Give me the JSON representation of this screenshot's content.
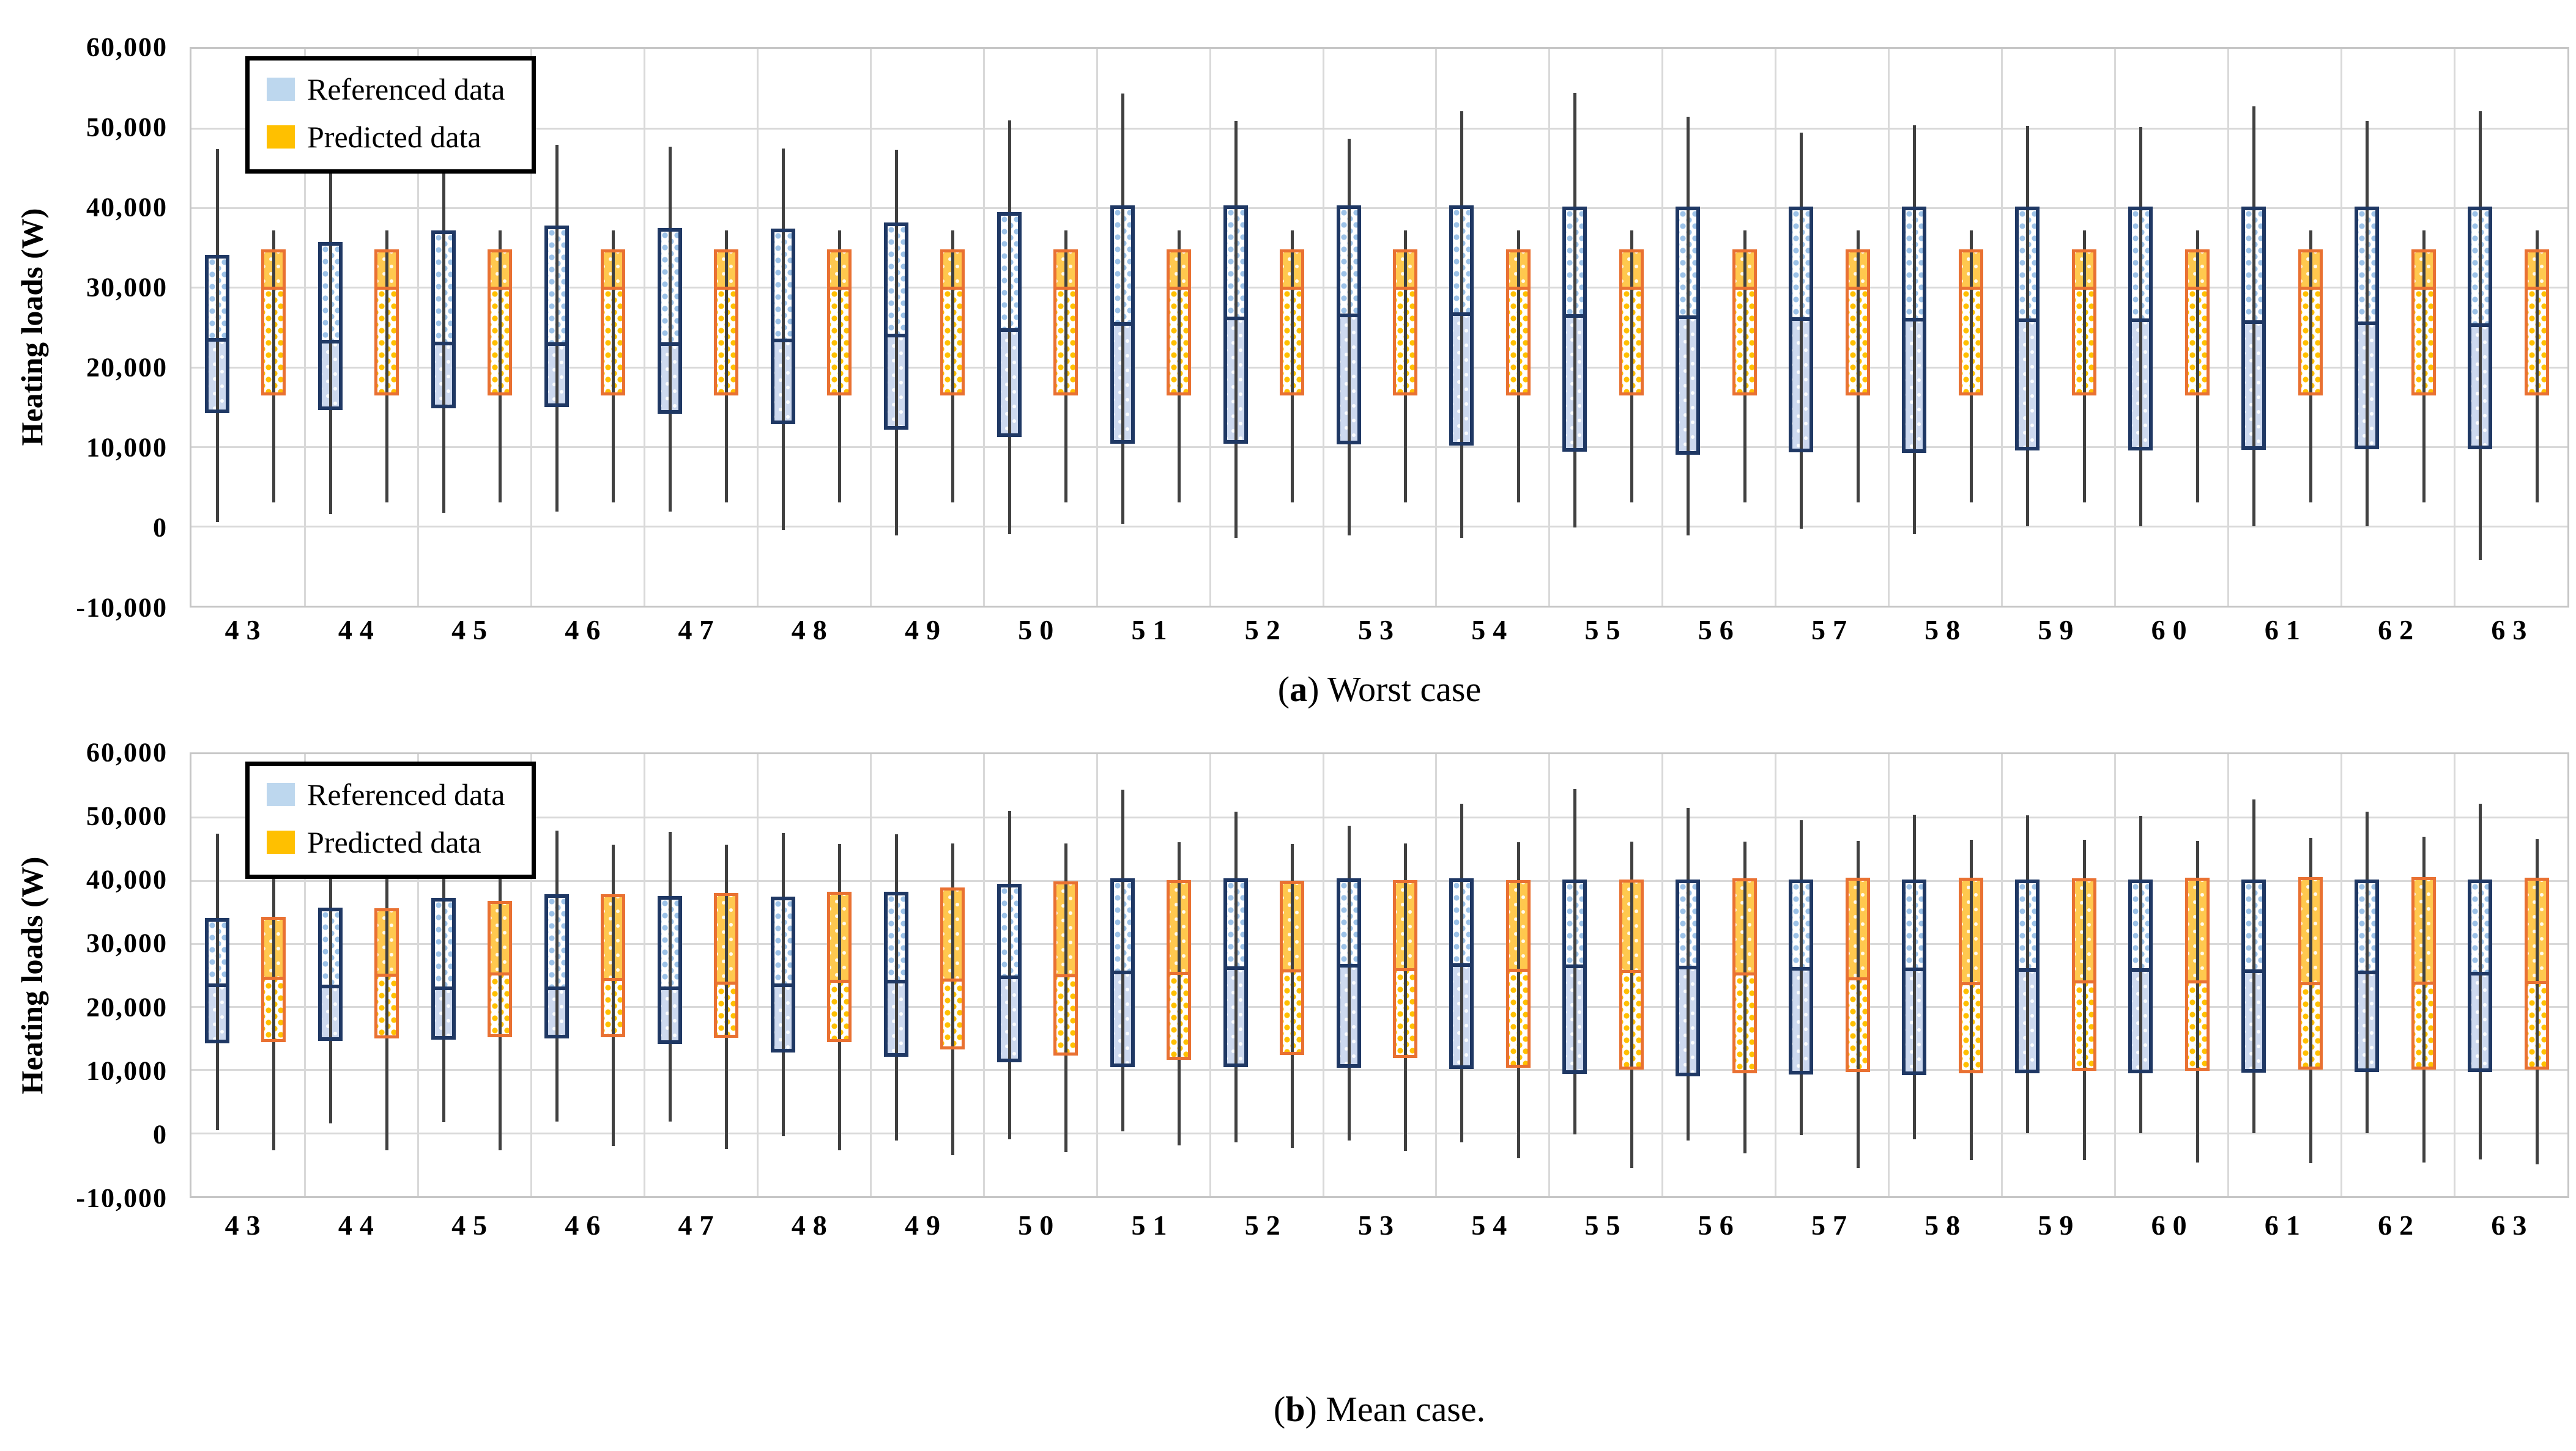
{
  "figure": {
    "background": "#ffffff",
    "grid_color": "#d9d9d9",
    "whisker_color": "#404040"
  },
  "chart_data": [
    {
      "type": "boxplot",
      "title": "(a) Worst case",
      "caption": {
        "pre": "(",
        "bold": "a",
        "post": ") Worst case"
      },
      "ylabel": "Heating loads (W)",
      "xlabel": "",
      "ylim": [
        -10000,
        60000
      ],
      "ytick_step": 10000,
      "grid": true,
      "legend_position": "top-left",
      "yticks": [
        {
          "value": 60000,
          "label": "60,000"
        },
        {
          "value": 50000,
          "label": "50,000"
        },
        {
          "value": 40000,
          "label": "40,000"
        },
        {
          "value": 30000,
          "label": "30,000"
        },
        {
          "value": 20000,
          "label": "20,000"
        },
        {
          "value": 10000,
          "label": "10,000"
        },
        {
          "value": 0,
          "label": "0"
        },
        {
          "value": -10000,
          "label": "-10,000"
        }
      ],
      "categories": [
        "43",
        "44",
        "45",
        "46",
        "47",
        "48",
        "49",
        "50",
        "51",
        "52",
        "53",
        "54",
        "55",
        "56",
        "57",
        "58",
        "59",
        "60",
        "61",
        "62",
        "63"
      ],
      "series": [
        {
          "name": "Referenced data",
          "swatch_color": "#bdd7ee",
          "border_color": "#1f3864",
          "values": [
            {
              "whisker_low": 500,
              "q1": 14200,
              "median": 23400,
              "q3": 34100,
              "whisker_high": 47400
            },
            {
              "whisker_low": 1500,
              "q1": 14600,
              "median": 23100,
              "q3": 35700,
              "whisker_high": 46900
            },
            {
              "whisker_low": 1700,
              "q1": 14800,
              "median": 22800,
              "q3": 37200,
              "whisker_high": 48300
            },
            {
              "whisker_low": 1800,
              "q1": 15000,
              "median": 22700,
              "q3": 37800,
              "whisker_high": 47900
            },
            {
              "whisker_low": 1800,
              "q1": 14100,
              "median": 22800,
              "q3": 37500,
              "whisker_high": 47700
            },
            {
              "whisker_low": -500,
              "q1": 12800,
              "median": 23300,
              "q3": 37400,
              "whisker_high": 47500
            },
            {
              "whisker_low": -1200,
              "q1": 12100,
              "median": 23900,
              "q3": 38200,
              "whisker_high": 47300
            },
            {
              "whisker_low": -1000,
              "q1": 11200,
              "median": 24600,
              "q3": 39500,
              "whisker_high": 51000
            },
            {
              "whisker_low": 300,
              "q1": 10400,
              "median": 25400,
              "q3": 40300,
              "whisker_high": 54400
            },
            {
              "whisker_low": -1500,
              "q1": 10400,
              "median": 26100,
              "q3": 40300,
              "whisker_high": 50900
            },
            {
              "whisker_low": -1200,
              "q1": 10300,
              "median": 26500,
              "q3": 40300,
              "whisker_high": 48700
            },
            {
              "whisker_low": -1500,
              "q1": 10100,
              "median": 26700,
              "q3": 40300,
              "whisker_high": 52200
            },
            {
              "whisker_low": -200,
              "q1": 9400,
              "median": 26500,
              "q3": 40200,
              "whisker_high": 54500
            },
            {
              "whisker_low": -1200,
              "q1": 9000,
              "median": 26300,
              "q3": 40200,
              "whisker_high": 51500
            },
            {
              "whisker_low": -300,
              "q1": 9300,
              "median": 26100,
              "q3": 40200,
              "whisker_high": 49500
            },
            {
              "whisker_low": -1000,
              "q1": 9200,
              "median": 26000,
              "q3": 40200,
              "whisker_high": 50400
            },
            {
              "whisker_low": 0,
              "q1": 9500,
              "median": 25900,
              "q3": 40200,
              "whisker_high": 50300
            },
            {
              "whisker_low": 0,
              "q1": 9500,
              "median": 25900,
              "q3": 40200,
              "whisker_high": 50200
            },
            {
              "whisker_low": 0,
              "q1": 9600,
              "median": 25700,
              "q3": 40200,
              "whisker_high": 52800
            },
            {
              "whisker_low": 0,
              "q1": 9700,
              "median": 25500,
              "q3": 40200,
              "whisker_high": 50900
            },
            {
              "whisker_low": -4200,
              "q1": 9700,
              "median": 25300,
              "q3": 40200,
              "whisker_high": 52200
            }
          ]
        },
        {
          "name": "Predicted data",
          "swatch_color": "#ffc000",
          "border_color": "#e97132",
          "values": [
            {
              "whisker_low": 3000,
              "q1": 16400,
              "median": 30100,
              "q3": 34800,
              "whisker_high": 37200
            },
            {
              "whisker_low": 3000,
              "q1": 16400,
              "median": 30100,
              "q3": 34800,
              "whisker_high": 37200
            },
            {
              "whisker_low": 3000,
              "q1": 16400,
              "median": 30100,
              "q3": 34800,
              "whisker_high": 37200
            },
            {
              "whisker_low": 3000,
              "q1": 16400,
              "median": 30100,
              "q3": 34800,
              "whisker_high": 37200
            },
            {
              "whisker_low": 3000,
              "q1": 16400,
              "median": 30100,
              "q3": 34800,
              "whisker_high": 37200
            },
            {
              "whisker_low": 3000,
              "q1": 16400,
              "median": 30100,
              "q3": 34800,
              "whisker_high": 37200
            },
            {
              "whisker_low": 3000,
              "q1": 16400,
              "median": 30100,
              "q3": 34800,
              "whisker_high": 37200
            },
            {
              "whisker_low": 3000,
              "q1": 16400,
              "median": 30100,
              "q3": 34800,
              "whisker_high": 37200
            },
            {
              "whisker_low": 3000,
              "q1": 16400,
              "median": 30100,
              "q3": 34800,
              "whisker_high": 37200
            },
            {
              "whisker_low": 3000,
              "q1": 16400,
              "median": 30100,
              "q3": 34800,
              "whisker_high": 37200
            },
            {
              "whisker_low": 3000,
              "q1": 16400,
              "median": 30100,
              "q3": 34800,
              "whisker_high": 37200
            },
            {
              "whisker_low": 3000,
              "q1": 16400,
              "median": 30100,
              "q3": 34800,
              "whisker_high": 37200
            },
            {
              "whisker_low": 3000,
              "q1": 16400,
              "median": 30100,
              "q3": 34800,
              "whisker_high": 37200
            },
            {
              "whisker_low": 3000,
              "q1": 16400,
              "median": 30100,
              "q3": 34800,
              "whisker_high": 37200
            },
            {
              "whisker_low": 3000,
              "q1": 16400,
              "median": 30100,
              "q3": 34800,
              "whisker_high": 37200
            },
            {
              "whisker_low": 3000,
              "q1": 16400,
              "median": 30100,
              "q3": 34800,
              "whisker_high": 37200
            },
            {
              "whisker_low": 3000,
              "q1": 16400,
              "median": 30100,
              "q3": 34800,
              "whisker_high": 37200
            },
            {
              "whisker_low": 3000,
              "q1": 16400,
              "median": 30100,
              "q3": 34800,
              "whisker_high": 37200
            },
            {
              "whisker_low": 3000,
              "q1": 16400,
              "median": 30100,
              "q3": 34800,
              "whisker_high": 37200
            },
            {
              "whisker_low": 3000,
              "q1": 16400,
              "median": 30100,
              "q3": 34800,
              "whisker_high": 37200
            },
            {
              "whisker_low": 3000,
              "q1": 16400,
              "median": 30100,
              "q3": 34800,
              "whisker_high": 37200
            }
          ]
        }
      ]
    },
    {
      "type": "boxplot",
      "title": "(b) Mean case.",
      "caption": {
        "pre": "(",
        "bold": "b",
        "post": ") Mean case."
      },
      "ylabel": "Heating loads (W)",
      "xlabel": "",
      "ylim": [
        -10000,
        60000
      ],
      "ytick_step": 10000,
      "grid": true,
      "legend_position": "top-left",
      "yticks": [
        {
          "value": 60000,
          "label": "60,000"
        },
        {
          "value": 50000,
          "label": "50,000"
        },
        {
          "value": 40000,
          "label": "40,000"
        },
        {
          "value": 30000,
          "label": "30,000"
        },
        {
          "value": 20000,
          "label": "20,000"
        },
        {
          "value": 10000,
          "label": "10,000"
        },
        {
          "value": 0,
          "label": "0"
        },
        {
          "value": -10000,
          "label": "-10,000"
        }
      ],
      "categories": [
        "43",
        "44",
        "45",
        "46",
        "47",
        "48",
        "49",
        "50",
        "51",
        "52",
        "53",
        "54",
        "55",
        "56",
        "57",
        "58",
        "59",
        "60",
        "61",
        "62",
        "63"
      ],
      "series": [
        {
          "name": "Referenced data",
          "swatch_color": "#bdd7ee",
          "border_color": "#1f3864",
          "values": [
            {
              "whisker_low": 500,
              "q1": 14200,
              "median": 23400,
              "q3": 34100,
              "whisker_high": 47400
            },
            {
              "whisker_low": 1500,
              "q1": 14600,
              "median": 23100,
              "q3": 35700,
              "whisker_high": 46900
            },
            {
              "whisker_low": 1700,
              "q1": 14800,
              "median": 22800,
              "q3": 37200,
              "whisker_high": 48300
            },
            {
              "whisker_low": 1800,
              "q1": 15000,
              "median": 22700,
              "q3": 37800,
              "whisker_high": 47900
            },
            {
              "whisker_low": 1800,
              "q1": 14100,
              "median": 22800,
              "q3": 37500,
              "whisker_high": 47700
            },
            {
              "whisker_low": -500,
              "q1": 12800,
              "median": 23300,
              "q3": 37400,
              "whisker_high": 47500
            },
            {
              "whisker_low": -1200,
              "q1": 12100,
              "median": 23900,
              "q3": 38200,
              "whisker_high": 47300
            },
            {
              "whisker_low": -1000,
              "q1": 11200,
              "median": 24600,
              "q3": 39500,
              "whisker_high": 51000
            },
            {
              "whisker_low": 300,
              "q1": 10400,
              "median": 25400,
              "q3": 40300,
              "whisker_high": 54400
            },
            {
              "whisker_low": -1500,
              "q1": 10400,
              "median": 26100,
              "q3": 40300,
              "whisker_high": 50900
            },
            {
              "whisker_low": -1200,
              "q1": 10300,
              "median": 26500,
              "q3": 40300,
              "whisker_high": 48700
            },
            {
              "whisker_low": -1500,
              "q1": 10100,
              "median": 26700,
              "q3": 40300,
              "whisker_high": 52200
            },
            {
              "whisker_low": -200,
              "q1": 9400,
              "median": 26500,
              "q3": 40200,
              "whisker_high": 54500
            },
            {
              "whisker_low": -1200,
              "q1": 9000,
              "median": 26300,
              "q3": 40200,
              "whisker_high": 51500
            },
            {
              "whisker_low": -300,
              "q1": 9300,
              "median": 26100,
              "q3": 40200,
              "whisker_high": 49500
            },
            {
              "whisker_low": -1000,
              "q1": 9200,
              "median": 26000,
              "q3": 40200,
              "whisker_high": 50400
            },
            {
              "whisker_low": 0,
              "q1": 9500,
              "median": 25900,
              "q3": 40200,
              "whisker_high": 50300
            },
            {
              "whisker_low": 0,
              "q1": 9500,
              "median": 25900,
              "q3": 40200,
              "whisker_high": 50200
            },
            {
              "whisker_low": 0,
              "q1": 9600,
              "median": 25700,
              "q3": 40200,
              "whisker_high": 52800
            },
            {
              "whisker_low": 0,
              "q1": 9700,
              "median": 25500,
              "q3": 40200,
              "whisker_high": 50900
            },
            {
              "whisker_low": -4200,
              "q1": 9700,
              "median": 25300,
              "q3": 40200,
              "whisker_high": 52200
            }
          ]
        },
        {
          "name": "Predicted data",
          "swatch_color": "#ffc000",
          "border_color": "#e97132",
          "values": [
            {
              "whisker_low": -2700,
              "q1": 14400,
              "median": 24500,
              "q3": 34200,
              "whisker_high": 45400
            },
            {
              "whisker_low": -2700,
              "q1": 15000,
              "median": 24900,
              "q3": 35600,
              "whisker_high": 45600
            },
            {
              "whisker_low": -2700,
              "q1": 15200,
              "median": 25100,
              "q3": 36800,
              "whisker_high": 45700
            },
            {
              "whisker_low": -2100,
              "q1": 15200,
              "median": 24200,
              "q3": 37800,
              "whisker_high": 45700
            },
            {
              "whisker_low": -2500,
              "q1": 15100,
              "median": 23600,
              "q3": 38000,
              "whisker_high": 45700
            },
            {
              "whisker_low": -2700,
              "q1": 14400,
              "median": 23900,
              "q3": 38200,
              "whisker_high": 45800
            },
            {
              "whisker_low": -3500,
              "q1": 13200,
              "median": 24100,
              "q3": 38900,
              "whisker_high": 45900
            },
            {
              "whisker_low": -3000,
              "q1": 12300,
              "median": 24800,
              "q3": 39900,
              "whisker_high": 45900
            },
            {
              "whisker_low": -2000,
              "q1": 11600,
              "median": 25200,
              "q3": 40100,
              "whisker_high": 46100
            },
            {
              "whisker_low": -2400,
              "q1": 12400,
              "median": 25600,
              "q3": 40000,
              "whisker_high": 45800
            },
            {
              "whisker_low": -2800,
              "q1": 11900,
              "median": 25800,
              "q3": 40100,
              "whisker_high": 45900
            },
            {
              "whisker_low": -4000,
              "q1": 10300,
              "median": 25700,
              "q3": 40100,
              "whisker_high": 46100
            },
            {
              "whisker_low": -5500,
              "q1": 10000,
              "median": 25500,
              "q3": 40200,
              "whisker_high": 46200
            },
            {
              "whisker_low": -3200,
              "q1": 9500,
              "median": 25200,
              "q3": 40300,
              "whisker_high": 46200
            },
            {
              "whisker_low": -5500,
              "q1": 9700,
              "median": 24300,
              "q3": 40400,
              "whisker_high": 46300
            },
            {
              "whisker_low": -4300,
              "q1": 9500,
              "median": 23600,
              "q3": 40400,
              "whisker_high": 46400
            },
            {
              "whisker_low": -4300,
              "q1": 9800,
              "median": 23800,
              "q3": 40300,
              "whisker_high": 46400
            },
            {
              "whisker_low": -4700,
              "q1": 9800,
              "median": 23800,
              "q3": 40400,
              "whisker_high": 46300
            },
            {
              "whisker_low": -4800,
              "q1": 10000,
              "median": 23500,
              "q3": 40500,
              "whisker_high": 46700
            },
            {
              "whisker_low": -4700,
              "q1": 10000,
              "median": 23600,
              "q3": 40500,
              "whisker_high": 46900
            },
            {
              "whisker_low": -5000,
              "q1": 10000,
              "median": 23700,
              "q3": 40400,
              "whisker_high": 46500
            }
          ]
        }
      ]
    }
  ]
}
